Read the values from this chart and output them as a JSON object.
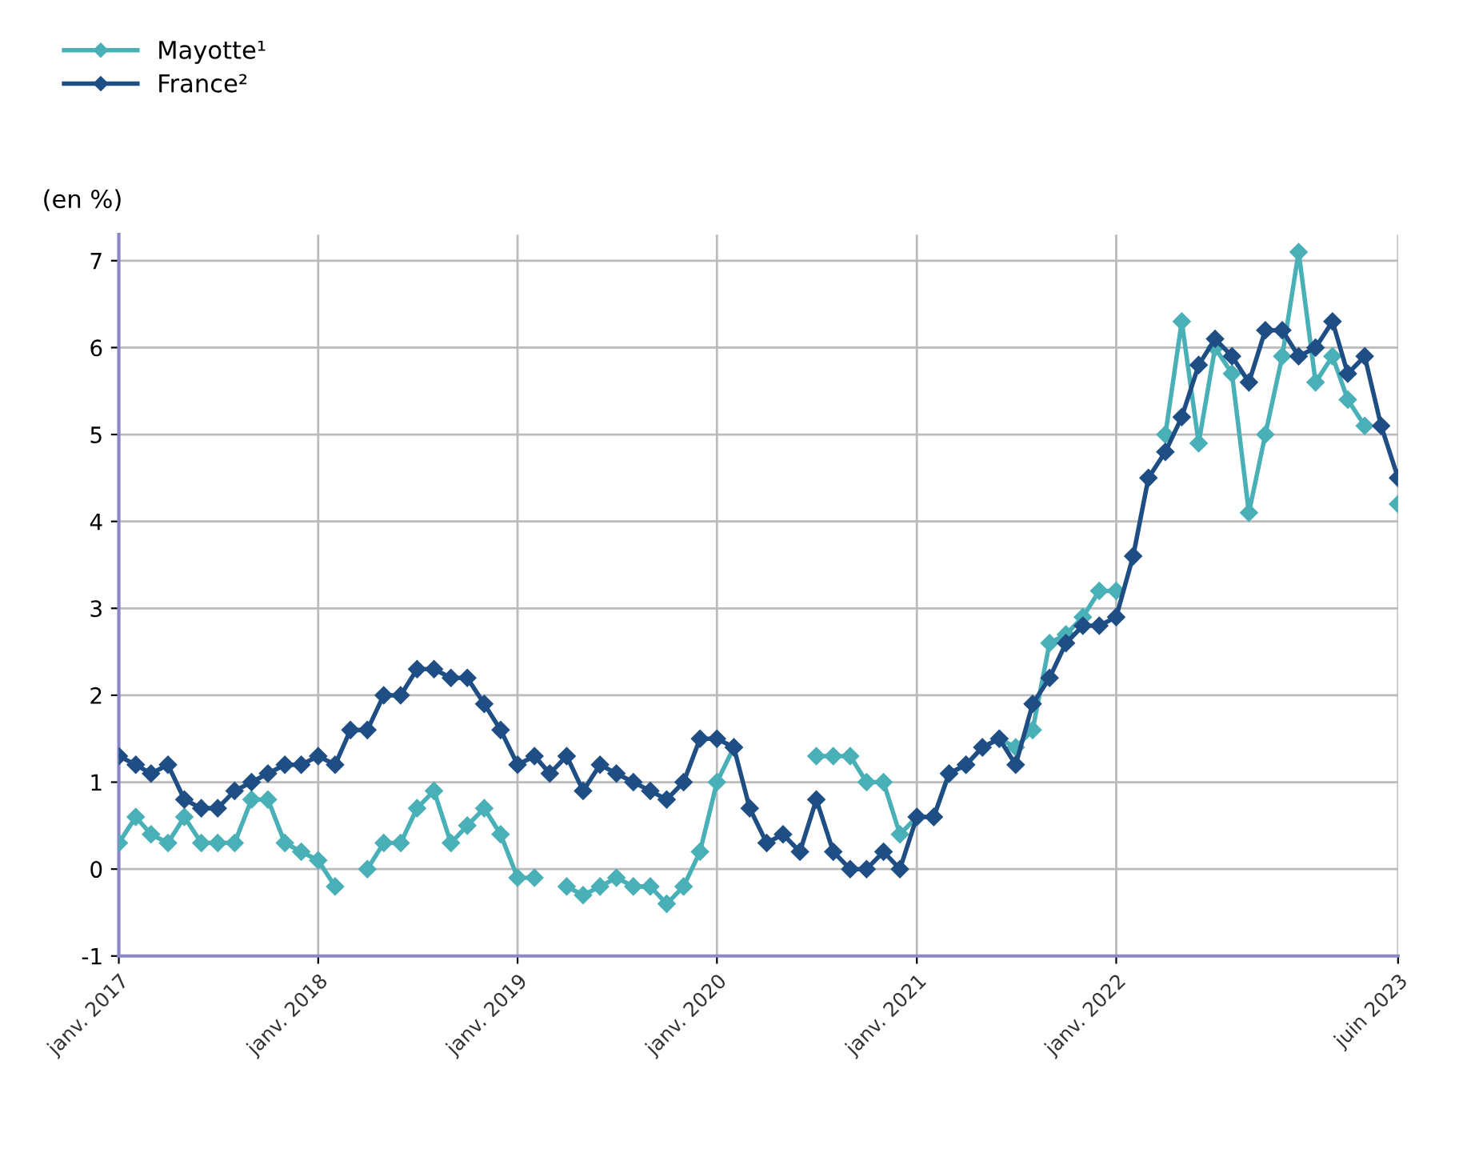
{
  "chart_data": {
    "type": "line",
    "ylabel": "(en %)",
    "x": [
      "2017-01",
      "2017-02",
      "2017-03",
      "2017-04",
      "2017-05",
      "2017-06",
      "2017-07",
      "2017-08",
      "2017-09",
      "2017-10",
      "2017-11",
      "2017-12",
      "2018-01",
      "2018-02",
      "2018-03",
      "2018-04",
      "2018-05",
      "2018-06",
      "2018-07",
      "2018-08",
      "2018-09",
      "2018-10",
      "2018-11",
      "2018-12",
      "2019-01",
      "2019-02",
      "2019-03",
      "2019-04",
      "2019-05",
      "2019-06",
      "2019-07",
      "2019-08",
      "2019-09",
      "2019-10",
      "2019-11",
      "2019-12",
      "2020-01",
      "2020-02",
      "2020-03",
      "2020-04",
      "2020-05",
      "2020-06",
      "2020-07",
      "2020-08",
      "2020-09",
      "2020-10",
      "2020-11",
      "2020-12",
      "2021-01",
      "2021-02",
      "2021-03",
      "2021-04",
      "2021-05",
      "2021-06",
      "2021-07",
      "2021-08",
      "2021-09",
      "2021-10",
      "2021-11",
      "2021-12",
      "2022-01",
      "2022-02",
      "2022-03",
      "2022-04",
      "2022-05",
      "2022-06",
      "2022-07",
      "2022-08",
      "2022-09",
      "2022-10",
      "2022-11",
      "2022-12",
      "2023-01",
      "2023-02",
      "2023-03",
      "2023-04",
      "2023-05",
      "2023-06"
    ],
    "series": [
      {
        "name": "Mayotte¹",
        "color": "#4ab0b8",
        "values": [
          0.3,
          0.6,
          0.4,
          0.3,
          0.6,
          0.3,
          0.3,
          0.3,
          0.8,
          0.8,
          0.3,
          0.2,
          0.1,
          -0.2,
          null,
          0.0,
          0.3,
          0.3,
          0.7,
          0.9,
          0.3,
          0.5,
          0.7,
          0.4,
          -0.1,
          -0.1,
          null,
          -0.2,
          -0.3,
          -0.2,
          -0.1,
          -0.2,
          -0.2,
          -0.4,
          -0.2,
          0.2,
          1.0,
          1.4,
          null,
          null,
          null,
          null,
          1.3,
          1.3,
          1.3,
          1.0,
          1.0,
          0.4,
          0.6,
          0.6,
          1.1,
          1.2,
          1.4,
          1.5,
          1.4,
          1.6,
          2.6,
          2.7,
          2.9,
          3.2,
          3.2,
          null,
          null,
          5.0,
          6.3,
          4.9,
          6.0,
          5.7,
          4.1,
          5.0,
          5.9,
          7.1,
          5.6,
          5.9,
          5.4,
          5.1,
          null,
          4.2
        ]
      },
      {
        "name": "France²",
        "color": "#1f4e85",
        "values": [
          1.3,
          1.2,
          1.1,
          1.2,
          0.8,
          0.7,
          0.7,
          0.9,
          1.0,
          1.1,
          1.2,
          1.2,
          1.3,
          1.2,
          1.6,
          1.6,
          2.0,
          2.0,
          2.3,
          2.3,
          2.2,
          2.2,
          1.9,
          1.6,
          1.2,
          1.3,
          1.1,
          1.3,
          0.9,
          1.2,
          1.1,
          1.0,
          0.9,
          0.8,
          1.0,
          1.5,
          1.5,
          1.4,
          0.7,
          0.3,
          0.4,
          0.2,
          0.8,
          0.2,
          0.0,
          0.0,
          0.2,
          0.0,
          0.6,
          0.6,
          1.1,
          1.2,
          1.4,
          1.5,
          1.2,
          1.9,
          2.2,
          2.6,
          2.8,
          2.8,
          2.9,
          3.6,
          4.5,
          4.8,
          5.2,
          5.8,
          6.1,
          5.9,
          5.6,
          6.2,
          6.2,
          5.9,
          6.0,
          6.3,
          5.7,
          5.9,
          5.1,
          4.5
        ]
      }
    ],
    "xlim": [
      "2017-01",
      "2023-06"
    ],
    "xticks": [
      {
        "value": "2017-01",
        "label": "janv. 2017"
      },
      {
        "value": "2018-01",
        "label": "janv. 2018"
      },
      {
        "value": "2019-01",
        "label": "janv. 2019"
      },
      {
        "value": "2020-01",
        "label": "janv. 2020"
      },
      {
        "value": "2021-01",
        "label": "janv. 2021"
      },
      {
        "value": "2022-01",
        "label": "janv. 2022"
      },
      {
        "value": "2023-06",
        "label": "juin 2023"
      }
    ],
    "ylim": [
      -1,
      7.3
    ],
    "yticks": [
      -1,
      0,
      1,
      2,
      3,
      4,
      5,
      6,
      7
    ],
    "grid": true,
    "legend": "top left",
    "marker": "diamond",
    "line_style": "solid"
  }
}
